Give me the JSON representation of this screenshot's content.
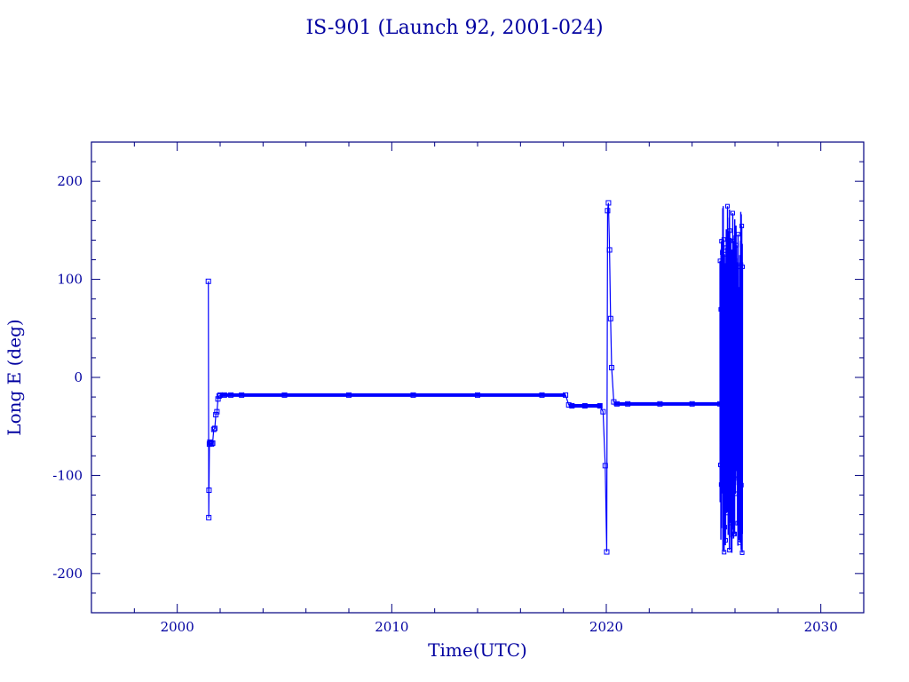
{
  "chart_data": {
    "type": "line",
    "title": "IS-901 (Launch 92, 2001-024)",
    "xlabel": "Time(UTC)",
    "ylabel": "Long E (deg)",
    "xlim": [
      1996,
      2032
    ],
    "ylim": [
      -240,
      240
    ],
    "x_ticks": [
      2000,
      2010,
      2020,
      2030
    ],
    "y_ticks": [
      -200,
      -100,
      0,
      100,
      200
    ],
    "grid": false,
    "legend": "none",
    "colors": {
      "axes": "#000080",
      "series": "#0000ff",
      "text": "#0000a0"
    },
    "series": [
      {
        "marker": "square",
        "x": [
          2001.45,
          2001.47,
          2001.48,
          2001.5,
          2001.52,
          2001.55,
          2001.6,
          2001.65,
          2001.7,
          2001.75,
          2001.8,
          2001.85,
          2001.9,
          2001.95,
          2002.0,
          2002.2,
          2002.5,
          2003.0,
          2005.0,
          2008.0,
          2011.0,
          2014.0,
          2017.0,
          2018.1,
          2018.25,
          2018.4,
          2019.0,
          2019.7,
          2019.85,
          2019.95,
          2020.02,
          2020.06,
          2020.1,
          2020.15,
          2020.2,
          2020.25,
          2020.35,
          2020.5,
          2021.0,
          2022.5,
          2024.0,
          2025.3
        ],
        "y": [
          98,
          -143,
          -115,
          -68,
          -66,
          -67,
          -68,
          -67,
          -53,
          -52,
          -38,
          -35,
          -22,
          -19,
          -18,
          -18,
          -18,
          -18,
          -18,
          -18,
          -18,
          -18,
          -18,
          -18,
          -28,
          -29,
          -29,
          -29,
          -35,
          -90,
          -178,
          170,
          178,
          130,
          60,
          10,
          -25,
          -27,
          -27,
          -27,
          -27,
          -27
        ]
      }
    ]
  }
}
